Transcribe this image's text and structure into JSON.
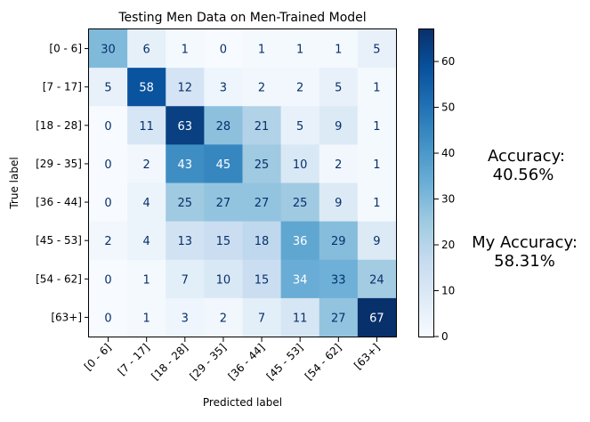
{
  "chart_data": {
    "type": "heatmap",
    "title": "Testing Men Data on Men-Trained Model",
    "xlabel": "Predicted label",
    "ylabel": "True label",
    "x_categories": [
      "[0 - 6]",
      "[7 - 17]",
      "[18 - 28]",
      "[29 - 35]",
      "[36 - 44]",
      "[45 - 53]",
      "[54 - 62]",
      "[63+]"
    ],
    "y_categories": [
      "[0 - 6]",
      "[7 - 17]",
      "[18 - 28]",
      "[29 - 35]",
      "[36 - 44]",
      "[45 - 53]",
      "[54 - 62]",
      "[63+]"
    ],
    "values": [
      [
        30,
        6,
        1,
        0,
        1,
        1,
        1,
        5
      ],
      [
        5,
        58,
        12,
        3,
        2,
        2,
        5,
        1
      ],
      [
        0,
        11,
        63,
        28,
        21,
        5,
        9,
        1
      ],
      [
        0,
        2,
        43,
        45,
        25,
        10,
        2,
        1
      ],
      [
        0,
        4,
        25,
        27,
        27,
        25,
        9,
        1
      ],
      [
        2,
        4,
        13,
        15,
        18,
        36,
        29,
        9
      ],
      [
        0,
        1,
        7,
        10,
        15,
        34,
        33,
        24
      ],
      [
        0,
        1,
        3,
        2,
        7,
        11,
        27,
        67
      ]
    ],
    "colorbar": {
      "min": 0,
      "max": 67,
      "ticks": [
        0,
        10,
        20,
        30,
        40,
        50,
        60
      ]
    },
    "colormap": "Blues",
    "grid": false
  },
  "annotations": {
    "accuracy_label": "Accuracy:",
    "accuracy_value": "40.56%",
    "my_accuracy_label": "My Accuracy:",
    "my_accuracy_value": "58.31%"
  }
}
